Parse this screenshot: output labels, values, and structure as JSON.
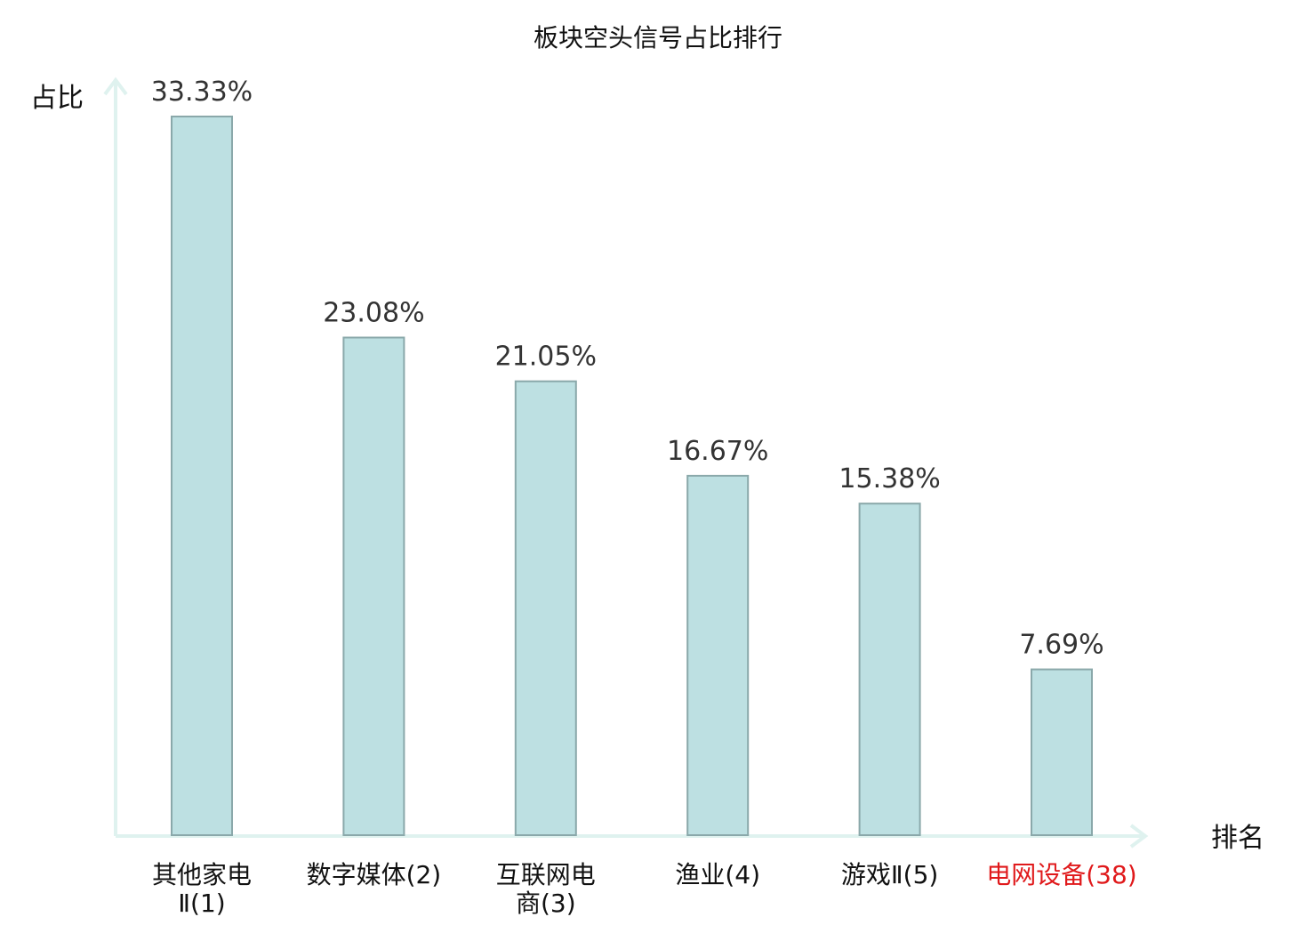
{
  "chart_data": {
    "type": "bar",
    "title": "板块空头信号占比排行",
    "ylabel": "占比",
    "xlabel": "排名",
    "categories": [
      "其他家电Ⅱ(1)",
      "数字媒体(2)",
      "互联网电商(3)",
      "渔业(4)",
      "游戏Ⅱ(5)",
      "电网设备(38)"
    ],
    "category_lines": [
      [
        "其他家电",
        "Ⅱ(1)"
      ],
      [
        "数字媒体(2)"
      ],
      [
        "互联网电",
        "商(3)"
      ],
      [
        "渔业(4)"
      ],
      [
        "游戏Ⅱ(5)"
      ],
      [
        "电网设备(38)"
      ]
    ],
    "values": [
      33.33,
      23.08,
      21.05,
      16.67,
      15.38,
      7.69
    ],
    "value_labels": [
      "33.33%",
      "23.08%",
      "21.05%",
      "16.67%",
      "15.38%",
      "7.69%"
    ],
    "highlight_index": 5,
    "ylim": [
      0,
      33.33
    ],
    "grid": false,
    "legend": "none",
    "colors": {
      "bar_fill": "#bde0e2",
      "bar_stroke": "#8aa8aa",
      "axis": "#dff2ef",
      "label_text": "#111111",
      "value_text": "#333333",
      "highlight_text": "#e0191b"
    }
  }
}
